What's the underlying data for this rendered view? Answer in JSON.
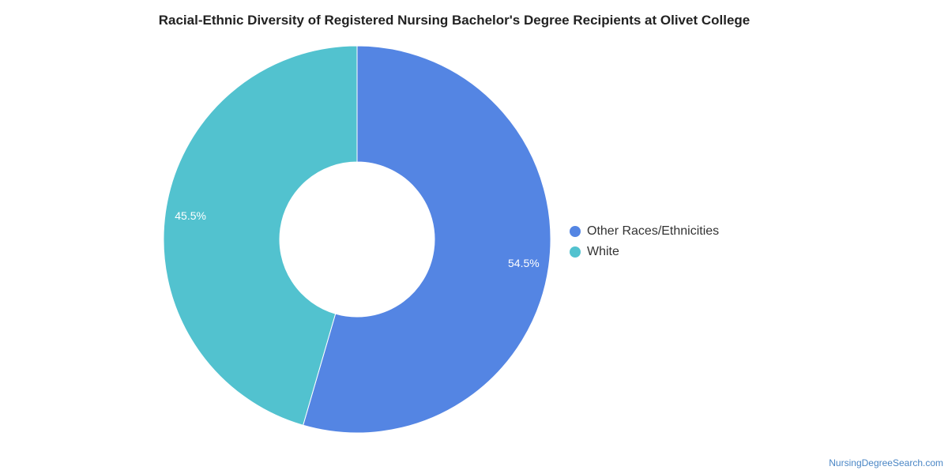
{
  "chart_data": {
    "type": "pie",
    "title": "Racial-Ethnic Diversity of Registered Nursing Bachelor's Degree Recipients at Olivet College",
    "categories": [
      "Other Races/Ethnicities",
      "White"
    ],
    "values": [
      54.5,
      45.5
    ],
    "value_labels": [
      "54.5%",
      "45.5%"
    ],
    "colors": [
      "#5485e3",
      "#52c2cf"
    ],
    "donut": true,
    "legend_position": "right",
    "start_angle_deg": 0,
    "direction": "clockwise"
  },
  "watermark": "NursingDegreeSearch.com"
}
